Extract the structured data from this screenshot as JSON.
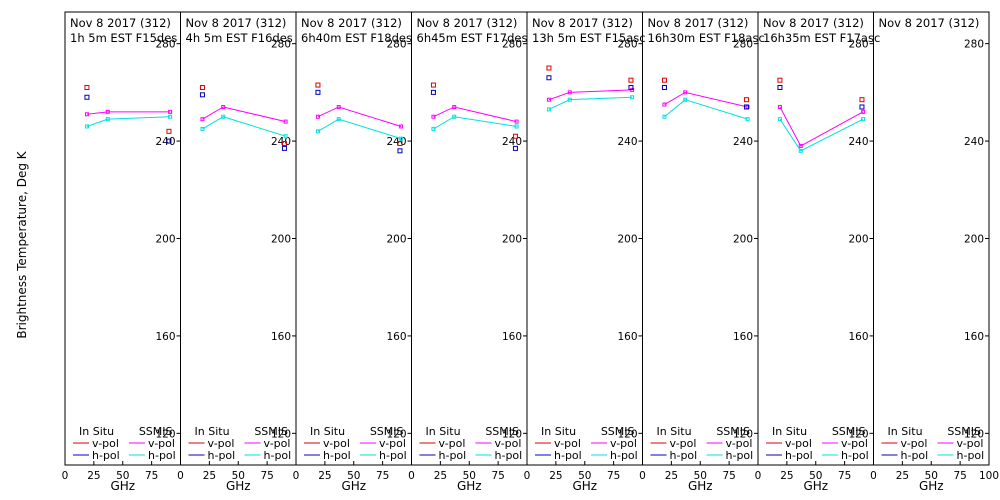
{
  "chart_data": {
    "type": "line",
    "ylabel": "Brightness Temperature, Deg K",
    "xlabel": "GHz",
    "ylim": [
      107,
      293
    ],
    "yticks": [
      120,
      160,
      200,
      240,
      280
    ],
    "xticks": [
      0,
      25,
      50,
      75,
      100
    ],
    "xtick_labels": [
      "0",
      "25",
      "50",
      "75",
      "100"
    ],
    "x_positions": [
      20,
      38,
      90
    ],
    "legend": {
      "insitu_title": "In Situ",
      "ssmis_title": "SSMIS",
      "vpol_label": "v-pol",
      "hpol_label": "h-pol"
    },
    "colors": {
      "insitu_v": "#e00000",
      "insitu_h": "#0000c0",
      "ssmis_v": "#ff00ff",
      "ssmis_h": "#00e0e0"
    },
    "panels": [
      {
        "title1": "Nov 8 2017 (312)",
        "title2": "1h 5m  EST  F15des",
        "insitu_v": [
          [
            19,
            262
          ],
          [
            90,
            244
          ]
        ],
        "insitu_h": [
          [
            19,
            258
          ],
          [
            90,
            240
          ]
        ],
        "ssmis_v": [
          [
            19,
            251
          ],
          [
            37,
            252
          ],
          [
            91,
            252
          ]
        ],
        "ssmis_h": [
          [
            19,
            246
          ],
          [
            37,
            249
          ],
          [
            91,
            250
          ]
        ]
      },
      {
        "title1": "Nov 8 2017 (312)",
        "title2": "4h 5m  EST  F16des",
        "insitu_v": [
          [
            19,
            262
          ],
          [
            90,
            239
          ]
        ],
        "insitu_h": [
          [
            19,
            259
          ],
          [
            90,
            237
          ]
        ],
        "ssmis_v": [
          [
            19,
            249
          ],
          [
            37,
            254
          ],
          [
            91,
            248
          ]
        ],
        "ssmis_h": [
          [
            19,
            245
          ],
          [
            37,
            250
          ],
          [
            91,
            242
          ]
        ]
      },
      {
        "title1": "Nov 8 2017 (312)",
        "title2": "6h40m  EST  F18des",
        "insitu_v": [
          [
            19,
            263
          ],
          [
            90,
            239
          ]
        ],
        "insitu_h": [
          [
            19,
            260
          ],
          [
            90,
            236
          ]
        ],
        "ssmis_v": [
          [
            19,
            250
          ],
          [
            37,
            254
          ],
          [
            91,
            246
          ]
        ],
        "ssmis_h": [
          [
            19,
            244
          ],
          [
            37,
            249
          ],
          [
            91,
            241
          ]
        ]
      },
      {
        "title1": "Nov 8 2017 (312)",
        "title2": "6h45m  EST  F17des",
        "insitu_v": [
          [
            19,
            263
          ],
          [
            90,
            242
          ]
        ],
        "insitu_h": [
          [
            19,
            260
          ],
          [
            90,
            237
          ]
        ],
        "ssmis_v": [
          [
            19,
            250
          ],
          [
            37,
            254
          ],
          [
            91,
            248
          ]
        ],
        "ssmis_h": [
          [
            19,
            245
          ],
          [
            37,
            250
          ],
          [
            91,
            246
          ]
        ]
      },
      {
        "title1": "Nov 8 2017 (312)",
        "title2": "13h 5m  EST  F15asc",
        "insitu_v": [
          [
            19,
            270
          ],
          [
            90,
            265
          ]
        ],
        "insitu_h": [
          [
            19,
            266
          ],
          [
            90,
            262
          ]
        ],
        "ssmis_v": [
          [
            19,
            257
          ],
          [
            37,
            260
          ],
          [
            91,
            261
          ]
        ],
        "ssmis_h": [
          [
            19,
            253
          ],
          [
            37,
            257
          ],
          [
            91,
            258
          ]
        ]
      },
      {
        "title1": "Nov 8 2017 (312)",
        "title2": "16h30m  EST  F18asc",
        "insitu_v": [
          [
            19,
            265
          ],
          [
            90,
            257
          ]
        ],
        "insitu_h": [
          [
            19,
            262
          ],
          [
            90,
            254
          ]
        ],
        "ssmis_v": [
          [
            19,
            255
          ],
          [
            37,
            260
          ],
          [
            91,
            254
          ]
        ],
        "ssmis_h": [
          [
            19,
            250
          ],
          [
            37,
            257
          ],
          [
            91,
            249
          ]
        ]
      },
      {
        "title1": "Nov 8 2017 (312)",
        "title2": "16h35m  EST  F17asc",
        "insitu_v": [
          [
            19,
            265
          ],
          [
            90,
            257
          ]
        ],
        "insitu_h": [
          [
            19,
            262
          ],
          [
            90,
            254
          ]
        ],
        "ssmis_v": [
          [
            19,
            254
          ],
          [
            37,
            238
          ],
          [
            91,
            252
          ]
        ],
        "ssmis_h": [
          [
            19,
            249
          ],
          [
            37,
            236
          ],
          [
            91,
            249
          ]
        ]
      },
      {
        "title1": "Nov 8 2017 (312)",
        "title2": "",
        "insitu_v": [],
        "insitu_h": [],
        "ssmis_v": [],
        "ssmis_h": []
      }
    ]
  }
}
